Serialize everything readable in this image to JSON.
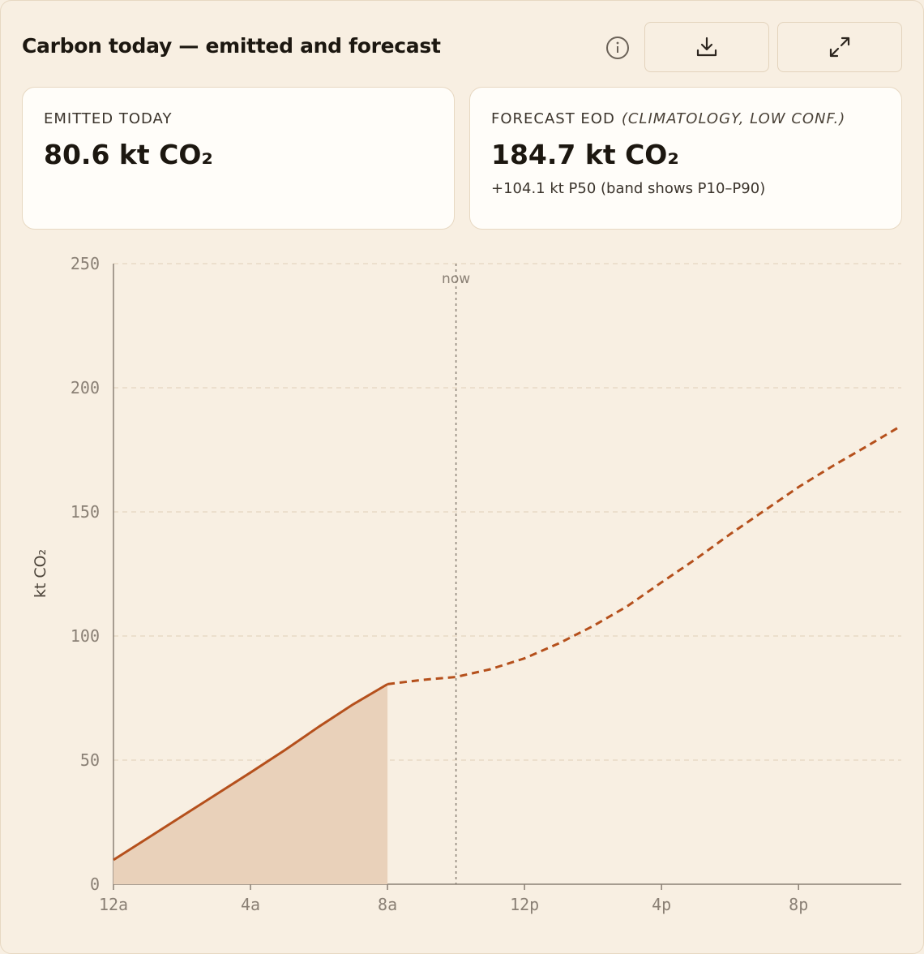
{
  "header": {
    "title": "Carbon today — emitted and forecast"
  },
  "cards": [
    {
      "label": "EMITTED TODAY",
      "value": "80.6 kt CO₂"
    },
    {
      "label": "FORECAST EOD",
      "qualifier": "(CLIMATOLOGY, LOW CONF.)",
      "value": "184.7 kt CO₂",
      "note": "+104.1 kt P50 (band shows P10–P90)"
    }
  ],
  "chart_data": {
    "type": "line",
    "ylabel": "kt CO₂",
    "xlim": [
      0,
      23
    ],
    "ylim": [
      0,
      250
    ],
    "xticks": [
      {
        "value": 0,
        "label": "12a"
      },
      {
        "value": 4,
        "label": "4a"
      },
      {
        "value": 8,
        "label": "8a"
      },
      {
        "value": 12,
        "label": "12p"
      },
      {
        "value": 16,
        "label": "4p"
      },
      {
        "value": 20,
        "label": "8p"
      }
    ],
    "yticks": [
      0,
      50,
      100,
      150,
      200,
      250
    ],
    "grid": true,
    "annotations": [
      {
        "text": "now",
        "x": 10
      }
    ],
    "series": [
      {
        "color": "#b5501c",
        "fill": "#e9d1ba",
        "dashed": false,
        "x": [
          0,
          1,
          2,
          3,
          4,
          5,
          6,
          7,
          8
        ],
        "values": [
          9.8,
          18.6,
          27.4,
          36.2,
          45,
          54,
          63.5,
          72.5,
          80.6
        ]
      },
      {
        "color": "#b5501c",
        "dashed": true,
        "x": [
          8,
          9,
          10,
          11,
          12,
          13,
          14,
          15,
          16,
          17,
          18,
          19,
          20,
          21,
          22,
          23
        ],
        "values": [
          80.6,
          82.3,
          83.5,
          86.6,
          91,
          97,
          104,
          112,
          121.6,
          131,
          141,
          150.5,
          160,
          168.5,
          176.5,
          184.7
        ]
      }
    ]
  }
}
